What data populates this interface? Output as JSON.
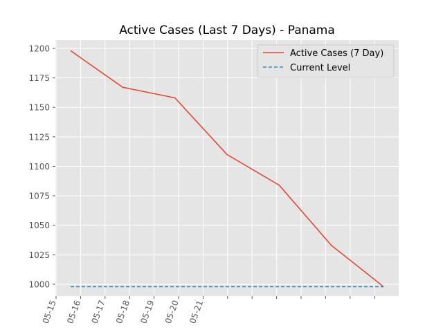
{
  "chart_data": {
    "type": "line",
    "title": "Active Cases (Last 7 Days) - Panama",
    "xlabel": "",
    "ylabel": "",
    "x_tick_labels": [
      "05-15",
      "05-16",
      "05-17",
      "05-18",
      "05-19",
      "05-20",
      "05-21"
    ],
    "ylim": [
      990,
      1207
    ],
    "y_ticks": [
      1000,
      1025,
      1050,
      1075,
      1100,
      1125,
      1150,
      1175,
      1200
    ],
    "grid": true,
    "legend_position": "top-right",
    "series": [
      {
        "name": "Active Cases (7 Day)",
        "style": "solid",
        "color": "#E24A33",
        "points": [
          {
            "x": "05-15",
            "y": 1198
          },
          {
            "x": "05-16",
            "y": 1167
          },
          {
            "x": "05-17",
            "y": 1158
          },
          {
            "x": "05-18",
            "y": 1110
          },
          {
            "x": "05-19",
            "y": 1084
          },
          {
            "x": "05-20",
            "y": 1033
          },
          {
            "x": "05-21",
            "y": 998
          }
        ]
      },
      {
        "name": "Current Level",
        "style": "dashed",
        "color": "#348ABD",
        "points": [
          {
            "x": "05-15",
            "y": 998
          },
          {
            "x": "05-21",
            "y": 998
          }
        ]
      }
    ]
  }
}
